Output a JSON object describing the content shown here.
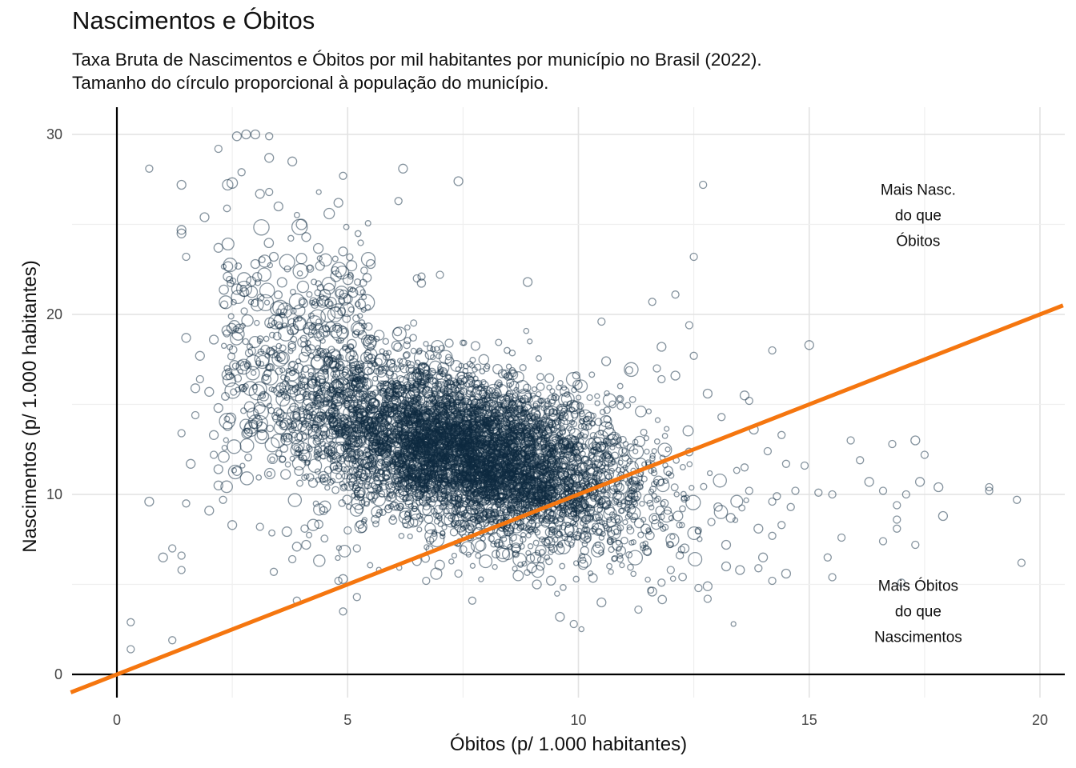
{
  "chart_data": {
    "type": "scatter",
    "title": "Nascimentos e Óbitos",
    "subtitle": [
      "Taxa Bruta de Nascimentos e Óbitos por mil habitantes por município no Brasil (2022).",
      "Tamanho do círculo proporcional à população do município."
    ],
    "xlabel": "Óbitos (p/ 1.000 habitantes)",
    "ylabel": "Nascimentos (p/ 1.000 habitantes)",
    "xlim": [
      -1,
      20.5
    ],
    "ylim": [
      -1,
      31.5
    ],
    "xticks": [
      "0",
      "5",
      "10",
      "15",
      "20"
    ],
    "yticks": [
      "0",
      "10",
      "20",
      "30"
    ],
    "grid": true,
    "reference_line": {
      "slope": 1,
      "intercept": 0,
      "color": "#f5760f"
    },
    "point_color": "#0d2a40",
    "annotations": [
      {
        "lines": [
          "Mais Nasc.",
          "do que",
          "Óbitos"
        ],
        "x": 17.5,
        "y": 25.5
      },
      {
        "lines": [
          "Mais Óbitos",
          "do que",
          "Nascimentos"
        ],
        "x": 17.5,
        "y": 3.5
      }
    ],
    "points": [
      [
        0.7,
        28.1,
        2
      ],
      [
        2.2,
        29.2,
        2
      ],
      [
        2.6,
        29.9,
        3
      ],
      [
        2.8,
        30.0,
        3
      ],
      [
        3.0,
        30.0,
        3
      ],
      [
        3.3,
        29.9,
        2
      ],
      [
        3.3,
        28.7,
        3
      ],
      [
        3.8,
        28.5,
        3
      ],
      [
        2.7,
        27.9,
        2
      ],
      [
        2.5,
        27.3,
        4
      ],
      [
        1.4,
        24.7,
        3
      ],
      [
        1.4,
        24.5,
        3
      ],
      [
        1.5,
        23.2,
        2
      ],
      [
        1.4,
        13.4,
        2
      ],
      [
        0.7,
        9.6,
        3
      ],
      [
        1.5,
        9.5,
        2
      ],
      [
        2.0,
        9.1,
        3
      ],
      [
        2.5,
        8.3,
        3
      ],
      [
        1.2,
        7.0,
        2
      ],
      [
        1.0,
        6.5,
        3
      ],
      [
        1.4,
        6.6,
        2
      ],
      [
        1.4,
        5.8,
        2
      ],
      [
        0.3,
        2.9,
        2
      ],
      [
        0.3,
        1.4,
        2
      ],
      [
        1.2,
        1.9,
        2
      ],
      [
        3.1,
        8.2,
        2
      ],
      [
        3.4,
        5.7,
        2
      ],
      [
        3.9,
        4.1,
        2
      ],
      [
        4.9,
        5.3,
        3
      ],
      [
        4.9,
        3.5,
        2
      ],
      [
        5.0,
        8.0,
        2
      ],
      [
        5.2,
        4.3,
        2
      ],
      [
        4.8,
        5.2,
        2
      ],
      [
        6.2,
        28.1,
        3
      ],
      [
        6.1,
        26.3,
        2
      ],
      [
        7.4,
        27.4,
        3
      ],
      [
        4.9,
        27.7,
        2
      ],
      [
        4.6,
        25.6,
        4
      ],
      [
        4.0,
        25.0,
        4
      ],
      [
        4.8,
        26.2,
        3
      ],
      [
        3.5,
        26.0,
        3
      ],
      [
        3.1,
        26.7,
        3
      ],
      [
        3.3,
        26.8,
        2
      ],
      [
        2.4,
        27.2,
        4
      ],
      [
        1.4,
        27.2,
        3
      ],
      [
        1.9,
        25.4,
        3
      ],
      [
        2.2,
        23.7,
        3
      ],
      [
        2.4,
        22.1,
        3
      ],
      [
        2.6,
        21.4,
        4
      ],
      [
        3.0,
        22.8,
        3
      ],
      [
        3.4,
        23.2,
        3
      ],
      [
        4.0,
        23.1,
        4
      ],
      [
        4.1,
        24.3,
        3
      ],
      [
        4.4,
        22.7,
        3
      ],
      [
        4.9,
        23.5,
        3
      ],
      [
        5.5,
        22.8,
        3
      ],
      [
        6.5,
        22.0,
        2
      ],
      [
        6.6,
        22.1,
        2
      ],
      [
        7.0,
        22.2,
        2
      ],
      [
        8.9,
        21.8,
        3
      ],
      [
        11.6,
        20.7,
        2
      ],
      [
        12.1,
        21.1,
        2
      ],
      [
        12.5,
        23.2,
        2
      ],
      [
        12.7,
        27.2,
        2
      ],
      [
        10.5,
        19.6,
        2
      ],
      [
        12.4,
        19.4,
        2
      ],
      [
        14.2,
        18.0,
        2
      ],
      [
        15.0,
        18.3,
        3
      ],
      [
        16.1,
        11.9,
        2
      ],
      [
        16.3,
        10.7,
        3
      ],
      [
        16.6,
        10.2,
        2
      ],
      [
        16.9,
        9.4,
        2
      ],
      [
        16.6,
        7.4,
        2
      ],
      [
        16.9,
        8.1,
        2
      ],
      [
        16.9,
        8.6,
        2
      ],
      [
        17.1,
        10.0,
        2
      ],
      [
        17.3,
        13.0,
        3
      ],
      [
        17.5,
        12.2,
        2
      ],
      [
        17.4,
        10.7,
        3
      ],
      [
        17.8,
        10.4,
        3
      ],
      [
        17.9,
        8.8,
        3
      ],
      [
        17.3,
        7.2,
        2
      ],
      [
        17.0,
        5.1,
        2
      ],
      [
        18.9,
        10.4,
        2
      ],
      [
        18.9,
        10.2,
        2
      ],
      [
        19.5,
        9.7,
        2
      ],
      [
        19.6,
        6.2,
        2
      ],
      [
        16.8,
        12.8,
        2
      ],
      [
        15.9,
        13.0,
        2
      ],
      [
        15.7,
        7.6,
        2
      ],
      [
        15.5,
        10.0,
        2
      ],
      [
        15.2,
        10.1,
        2
      ],
      [
        15.4,
        6.5,
        2
      ],
      [
        15.5,
        5.4,
        2
      ],
      [
        14.2,
        5.2,
        2
      ],
      [
        14.5,
        5.6,
        3
      ],
      [
        13.9,
        5.9,
        2
      ],
      [
        12.8,
        4.2,
        2
      ],
      [
        12.8,
        4.9,
        3
      ],
      [
        12.6,
        4.8,
        2
      ],
      [
        11.6,
        4.6,
        3
      ],
      [
        11.3,
        3.6,
        2
      ],
      [
        10.5,
        4.0,
        3
      ],
      [
        9.9,
        2.8,
        2
      ],
      [
        9.6,
        3.2,
        3
      ],
      [
        9.1,
        5.0,
        3
      ],
      [
        7.7,
        4.1,
        2
      ],
      [
        7.4,
        5.6,
        2
      ],
      [
        6.7,
        5.2,
        2
      ],
      [
        6.5,
        6.3,
        3
      ],
      [
        5.2,
        7.0,
        2
      ],
      [
        4.1,
        7.2,
        3
      ],
      [
        3.8,
        6.4,
        2
      ],
      [
        3.9,
        7.1,
        3
      ],
      [
        2.1,
        18.6,
        3
      ],
      [
        1.5,
        18.7,
        3
      ],
      [
        1.8,
        17.7,
        3
      ],
      [
        1.8,
        16.4,
        2
      ],
      [
        1.7,
        15.9,
        3
      ],
      [
        2.0,
        15.7,
        3
      ],
      [
        2.2,
        14.8,
        3
      ],
      [
        1.7,
        14.4,
        2
      ],
      [
        2.1,
        13.3,
        3
      ],
      [
        1.6,
        11.7,
        3
      ],
      [
        2.2,
        11.4,
        3
      ],
      [
        2.2,
        10.5,
        3
      ],
      [
        2.3,
        9.7,
        2
      ],
      [
        2.6,
        11.3,
        3
      ],
      [
        2.1,
        12.2,
        2
      ],
      [
        2.4,
        13.8,
        3
      ],
      [
        13.6,
        15.5,
        3
      ],
      [
        13.7,
        15.2,
        2
      ],
      [
        13.7,
        10.2,
        2
      ],
      [
        14.1,
        12.4,
        2
      ],
      [
        14.5,
        11.7,
        2
      ],
      [
        14.7,
        10.2,
        2
      ],
      [
        14.2,
        9.6,
        2
      ],
      [
        14.6,
        9.3,
        2
      ],
      [
        14.2,
        7.7,
        2
      ],
      [
        14.4,
        8.3,
        2
      ],
      [
        14.0,
        6.5,
        3
      ],
      [
        13.2,
        6.0,
        3
      ],
      [
        13.5,
        5.8,
        3
      ],
      [
        13.2,
        7.2,
        3
      ],
      [
        13.9,
        8.1,
        3
      ],
      [
        13.3,
        8.7,
        3
      ],
      [
        12.3,
        7.0,
        3
      ],
      [
        11.8,
        5.1,
        2
      ],
      [
        12.0,
        5.8,
        2
      ],
      [
        11.5,
        6.8,
        2
      ],
      [
        13.6,
        11.5,
        2
      ],
      [
        13.8,
        13.6,
        3
      ],
      [
        14.4,
        13.3,
        2
      ],
      [
        13.1,
        14.3,
        2
      ],
      [
        14.9,
        11.6,
        2
      ],
      [
        14.3,
        9.9,
        2
      ],
      [
        12.8,
        15.6,
        3
      ],
      [
        12.1,
        16.6,
        3
      ],
      [
        12.5,
        17.7,
        2
      ],
      [
        11.8,
        18.2,
        3
      ],
      [
        11.7,
        17.0,
        2
      ],
      [
        11.8,
        16.4,
        2
      ],
      [
        11.1,
        16.9,
        2
      ],
      [
        10.6,
        17.4,
        3
      ],
      [
        10.9,
        15.3,
        2
      ]
    ]
  }
}
